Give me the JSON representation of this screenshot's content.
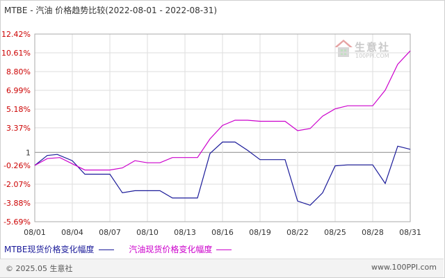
{
  "title": "MTBE - 汽油  价格趋势比较(2022-08-01 - 2022-08-31)",
  "footer": {
    "copyright": "© 2025.05 生意社",
    "site": "www.100PPI.com"
  },
  "watermark": {
    "name": "生意社",
    "url": "100PPI.COM"
  },
  "legend": [
    {
      "name": "MTBE现货价格变化幅度",
      "color": "#1a1a99"
    },
    {
      "name": "汽油现货价格变化幅度",
      "color": "#cc00cc"
    }
  ],
  "chart_data": {
    "type": "line",
    "title": "MTBE - 汽油  价格趋势比较(2022-08-01 - 2022-08-31)",
    "ylim": [
      -5.69,
      12.42
    ],
    "yticks": [
      "12.42%",
      "10.61%",
      "8.80%",
      "6.99%",
      "5.18%",
      "3.37%",
      "1",
      "-0.26%",
      "-2.07%",
      "-3.88%",
      "-5.69%"
    ],
    "ytick_values": [
      12.42,
      10.61,
      8.8,
      6.99,
      5.18,
      3.37,
      1,
      -0.26,
      -2.07,
      -3.88,
      -5.69
    ],
    "x_range": [
      1,
      31
    ],
    "xticks": [
      "08/01",
      "08/04",
      "08/07",
      "08/10",
      "08/13",
      "08/16",
      "08/19",
      "08/22",
      "08/25",
      "08/28",
      "08/31"
    ],
    "xtick_values": [
      1,
      4,
      7,
      10,
      13,
      16,
      19,
      22,
      25,
      28,
      31
    ],
    "grid": true,
    "legend_position": "bottom-left",
    "series": [
      {
        "name": "MTBE现货价格变化幅度",
        "color": "#1a1a99",
        "x": [
          1,
          2,
          2.8,
          4,
          5,
          7,
          8,
          9,
          10,
          11,
          12,
          13,
          14,
          15,
          16,
          17,
          18,
          19,
          20,
          21,
          22,
          23,
          24,
          25,
          26,
          27,
          28,
          29,
          30,
          31
        ],
        "y": [
          -0.26,
          0.7,
          0.8,
          0.2,
          -1.1,
          -1.1,
          -2.9,
          -2.7,
          -2.7,
          -2.7,
          -3.4,
          -3.4,
          -3.4,
          0.9,
          2.0,
          2.0,
          1.2,
          0.3,
          0.3,
          0.3,
          -3.7,
          -4.1,
          -2.9,
          -0.3,
          -0.2,
          -0.2,
          -0.2,
          -2.0,
          1.6,
          1.3
        ]
      },
      {
        "name": "汽油现货价格变化幅度",
        "color": "#cc00cc",
        "x": [
          1,
          2,
          3,
          4,
          5,
          6,
          7,
          8,
          9,
          10,
          11,
          12,
          13,
          14,
          15,
          16,
          17,
          18,
          19,
          20,
          21,
          22,
          23,
          24,
          25,
          26,
          27,
          28,
          29,
          30,
          31
        ],
        "y": [
          -0.26,
          0.4,
          0.5,
          -0.1,
          -0.7,
          -0.7,
          -0.7,
          -0.5,
          0.2,
          0.0,
          0.0,
          0.5,
          0.5,
          0.5,
          2.3,
          3.6,
          4.1,
          4.1,
          4.0,
          4.0,
          4.0,
          3.1,
          3.3,
          4.5,
          5.2,
          5.5,
          5.5,
          5.5,
          7.0,
          9.5,
          10.8
        ]
      }
    ]
  }
}
